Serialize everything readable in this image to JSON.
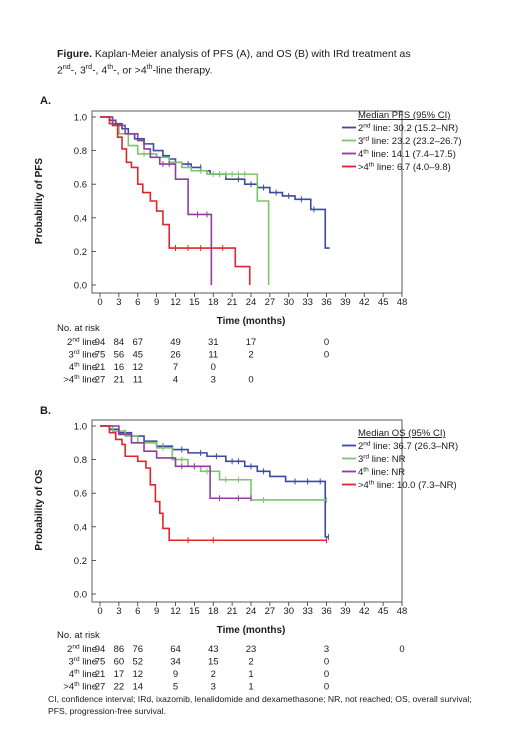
{
  "caption": {
    "figure_word": "Figure.",
    "before_2": " Kaplan-Meier analysis of PFS (A), and OS (B) with IRd treatment as",
    "n2": "2",
    "sup2": "nd",
    "sep_a": "-, ",
    "n3": "3",
    "sup3": "rd",
    "sep_b": "-, ",
    "n4": "4",
    "sup4": "th",
    "sep_c": "-, or >",
    "n5": "4",
    "sup5": "th",
    "tail": "-line  therapy."
  },
  "footnote": "CI, confidence interval; IRd, ixazomib, lenalidomide and dexamethasone; NR, not reached; OS, overall survival; PFS, progression-free survival.",
  "at_risk_title": "No. at risk",
  "colors": {
    "l2": "#3b4a9e",
    "l3": "#7cc46e",
    "l4": "#8e3f9c",
    "l5": "#e0262b",
    "axis": "#333333"
  },
  "chart_data": [
    {
      "panel": "A.",
      "type": "line",
      "ylabel": "Probability of PFS",
      "xlabel": "Time (months)",
      "xlim": [
        0,
        48
      ],
      "ylim": [
        0,
        1
      ],
      "xticks": [
        0,
        3,
        6,
        9,
        12,
        15,
        18,
        21,
        24,
        27,
        30,
        33,
        36,
        39,
        42,
        45,
        48
      ],
      "yticks": [
        "0.0",
        "0.2",
        "0.4",
        "0.6",
        "0.8",
        "1.0"
      ],
      "legend_title": "Median PFS (95% CI)",
      "series": [
        {
          "key": "l2",
          "name": "2nd line: 30.2 (15.2–NR)",
          "sup": "nd",
          "rest": " line: 30.2 (15.2–NR)",
          "num": "2",
          "steps": [
            [
              0,
              1
            ],
            [
              1.5,
              0.98
            ],
            [
              2.5,
              0.96
            ],
            [
              3.5,
              0.93
            ],
            [
              4.5,
              0.9
            ],
            [
              5.5,
              0.87
            ],
            [
              7,
              0.84
            ],
            [
              8.5,
              0.8
            ],
            [
              10,
              0.77
            ],
            [
              11,
              0.75
            ],
            [
              12,
              0.73
            ],
            [
              13,
              0.72
            ],
            [
              14.5,
              0.7
            ],
            [
              16,
              0.68
            ],
            [
              17.5,
              0.66
            ],
            [
              20,
              0.63
            ],
            [
              23,
              0.6
            ],
            [
              25,
              0.58
            ],
            [
              27,
              0.55
            ],
            [
              29,
              0.53
            ],
            [
              31,
              0.51
            ],
            [
              33.5,
              0.45
            ],
            [
              35.8,
              0.22
            ]
          ],
          "end": 36.5,
          "censor": [
            [
              14,
              0.72
            ],
            [
              16,
              0.7
            ],
            [
              19,
              0.66
            ],
            [
              22,
              0.63
            ],
            [
              24,
              0.6
            ],
            [
              26,
              0.58
            ],
            [
              28,
              0.55
            ],
            [
              30,
              0.53
            ],
            [
              32,
              0.51
            ],
            [
              34,
              0.45
            ]
          ]
        },
        {
          "key": "l3",
          "name": "3rd line: 23.2 (23.2–26.7)",
          "sup": "rd",
          "rest": " line: 23.2 (23.2–26.7)",
          "num": "3",
          "steps": [
            [
              0,
              1
            ],
            [
              2,
              0.95
            ],
            [
              3,
              0.9
            ],
            [
              4.5,
              0.83
            ],
            [
              6,
              0.78
            ],
            [
              9,
              0.76
            ],
            [
              11,
              0.73
            ],
            [
              13,
              0.7
            ],
            [
              14.5,
              0.68
            ],
            [
              17,
              0.66
            ],
            [
              25,
              0.5
            ],
            [
              26.8,
              0
            ]
          ],
          "end": 26.8,
          "censor": [
            [
              7,
              0.78
            ],
            [
              8,
              0.78
            ],
            [
              16,
              0.68
            ],
            [
              18,
              0.66
            ],
            [
              19,
              0.66
            ],
            [
              20,
              0.66
            ],
            [
              21,
              0.66
            ],
            [
              22,
              0.66
            ],
            [
              23,
              0.66
            ]
          ]
        },
        {
          "key": "l4",
          "name": "4th line: 14.1 (7.4–17.5)",
          "sup": "th",
          "rest": " line: 14.1 (7.4–17.5)",
          "num": "4",
          "steps": [
            [
              0,
              1
            ],
            [
              2,
              0.95
            ],
            [
              4,
              0.9
            ],
            [
              6,
              0.86
            ],
            [
              7,
              0.81
            ],
            [
              8,
              0.76
            ],
            [
              9.5,
              0.72
            ],
            [
              12,
              0.63
            ],
            [
              14,
              0.42
            ],
            [
              17.7,
              0
            ]
          ],
          "end": 17.7,
          "censor": [
            [
              10,
              0.72
            ],
            [
              11,
              0.72
            ],
            [
              15.5,
              0.42
            ],
            [
              17,
              0.42
            ]
          ]
        },
        {
          "key": "l5",
          "name": ">4th line: 6.7 (4.0–9.8)",
          "sup": "th",
          "rest": " line: 6.7 (4.0–9.8)",
          "num": ">4",
          "steps": [
            [
              0,
              1
            ],
            [
              1.5,
              0.96
            ],
            [
              2.8,
              0.88
            ],
            [
              3.5,
              0.81
            ],
            [
              4.2,
              0.73
            ],
            [
              5,
              0.7
            ],
            [
              6,
              0.6
            ],
            [
              6.8,
              0.55
            ],
            [
              8,
              0.5
            ],
            [
              9,
              0.44
            ],
            [
              10,
              0.36
            ],
            [
              11,
              0.22
            ],
            [
              21.5,
              0.11
            ],
            [
              23.8,
              0
            ]
          ],
          "end": 23.8,
          "censor": [
            [
              12,
              0.22
            ],
            [
              14,
              0.22
            ],
            [
              16,
              0.22
            ],
            [
              19.5,
              0.22
            ]
          ]
        }
      ],
      "at_risk": [
        {
          "num": "2",
          "sup": "nd",
          "label": " line",
          "values": [
            [
              "0",
              "94"
            ],
            [
              "3",
              "84"
            ],
            [
              "6",
              "67"
            ],
            [
              "12",
              "49"
            ],
            [
              "18",
              "31"
            ],
            [
              "24",
              "17"
            ],
            [
              "36",
              "0"
            ]
          ]
        },
        {
          "num": "3",
          "sup": "rd",
          "label": " line",
          "values": [
            [
              "0",
              "75"
            ],
            [
              "3",
              "56"
            ],
            [
              "6",
              "45"
            ],
            [
              "12",
              "26"
            ],
            [
              "18",
              "11"
            ],
            [
              "24",
              "2"
            ],
            [
              "36",
              "0"
            ]
          ]
        },
        {
          "num": "4",
          "sup": "th",
          "label": " line",
          "values": [
            [
              "0",
              "21"
            ],
            [
              "3",
              "16"
            ],
            [
              "6",
              "12"
            ],
            [
              "12",
              "7"
            ],
            [
              "18",
              "0"
            ]
          ]
        },
        {
          "num": ">4",
          "sup": "th",
          "label": " line",
          "values": [
            [
              "0",
              "27"
            ],
            [
              "3",
              "21"
            ],
            [
              "6",
              "11"
            ],
            [
              "12",
              "4"
            ],
            [
              "18",
              "3"
            ],
            [
              "24",
              "0"
            ]
          ]
        }
      ]
    },
    {
      "panel": "B.",
      "type": "line",
      "ylabel": "Probability of OS",
      "xlabel": "Time (months)",
      "xlim": [
        0,
        48
      ],
      "ylim": [
        0,
        1
      ],
      "xticks": [
        0,
        3,
        6,
        9,
        12,
        15,
        18,
        21,
        24,
        27,
        30,
        33,
        36,
        39,
        42,
        45,
        48
      ],
      "yticks": [
        "0.0",
        "0.2",
        "0.4",
        "0.6",
        "0.8",
        "1.0"
      ],
      "legend_title": "Median OS (95% CI)",
      "series": [
        {
          "key": "l2",
          "name": "2nd line: 36.7 (26.3–NR)",
          "sup": "nd",
          "rest": " line: 36.7 (26.3–NR)",
          "num": "2",
          "steps": [
            [
              0,
              1
            ],
            [
              1.5,
              0.98
            ],
            [
              3,
              0.96
            ],
            [
              5,
              0.94
            ],
            [
              7,
              0.91
            ],
            [
              9,
              0.88
            ],
            [
              11.5,
              0.86
            ],
            [
              14,
              0.84
            ],
            [
              17,
              0.82
            ],
            [
              20,
              0.79
            ],
            [
              23,
              0.76
            ],
            [
              25,
              0.73
            ],
            [
              27,
              0.7
            ],
            [
              29.5,
              0.67
            ],
            [
              35.8,
              0.34
            ]
          ],
          "end": 36.4,
          "censor": [
            [
              4,
              0.96
            ],
            [
              10,
              0.88
            ],
            [
              13,
              0.86
            ],
            [
              16,
              0.84
            ],
            [
              18.5,
              0.82
            ],
            [
              21,
              0.79
            ],
            [
              22,
              0.79
            ],
            [
              24,
              0.76
            ],
            [
              26,
              0.73
            ],
            [
              31,
              0.67
            ],
            [
              33,
              0.67
            ],
            [
              35,
              0.67
            ],
            [
              36.3,
              0.34
            ]
          ]
        },
        {
          "key": "l3",
          "name": "3rd line: NR",
          "sup": "rd",
          "rest": " line: NR",
          "num": "3",
          "steps": [
            [
              0,
              1
            ],
            [
              2,
              0.97
            ],
            [
              4,
              0.94
            ],
            [
              6,
              0.9
            ],
            [
              9,
              0.87
            ],
            [
              11.5,
              0.8
            ],
            [
              14,
              0.76
            ],
            [
              16,
              0.73
            ],
            [
              19,
              0.68
            ],
            [
              24,
              0.56
            ]
          ],
          "end": 36,
          "censor": [
            [
              10,
              0.87
            ],
            [
              13,
              0.8
            ],
            [
              15,
              0.76
            ],
            [
              17,
              0.73
            ],
            [
              20,
              0.68
            ],
            [
              22,
              0.68
            ],
            [
              26,
              0.56
            ],
            [
              36,
              0.56
            ]
          ]
        },
        {
          "key": "l4",
          "name": "4th line: NR",
          "sup": "th",
          "rest": " line: NR",
          "num": "4",
          "steps": [
            [
              0,
              1
            ],
            [
              3,
              0.95
            ],
            [
              5,
              0.9
            ],
            [
              7,
              0.85
            ],
            [
              9,
              0.81
            ],
            [
              12,
              0.76
            ],
            [
              17.5,
              0.57
            ]
          ],
          "end": 24,
          "censor": [
            [
              13,
              0.76
            ],
            [
              15,
              0.76
            ],
            [
              19,
              0.57
            ],
            [
              22,
              0.57
            ],
            [
              24,
              0.57
            ]
          ]
        },
        {
          "key": "l5",
          "name": ">4th line: 10.0 (7.3–NR)",
          "sup": "th",
          "rest": " line: 10.0 (7.3–NR)",
          "num": ">4",
          "steps": [
            [
              0,
              1
            ],
            [
              1.5,
              0.96
            ],
            [
              2.5,
              0.92
            ],
            [
              3.5,
              0.89
            ],
            [
              4,
              0.82
            ],
            [
              6,
              0.79
            ],
            [
              7.3,
              0.75
            ],
            [
              8,
              0.65
            ],
            [
              8.8,
              0.55
            ],
            [
              9.5,
              0.48
            ],
            [
              10,
              0.39
            ],
            [
              11,
              0.32
            ]
          ],
          "end": 36,
          "censor": [
            [
              14,
              0.32
            ],
            [
              18,
              0.32
            ],
            [
              36,
              0.32
            ]
          ]
        }
      ],
      "at_risk": [
        {
          "num": "2",
          "sup": "nd",
          "label": " line",
          "values": [
            [
              "0",
              "94"
            ],
            [
              "3",
              "86"
            ],
            [
              "6",
              "76"
            ],
            [
              "12",
              "64"
            ],
            [
              "18",
              "43"
            ],
            [
              "24",
              "23"
            ],
            [
              "36",
              "3"
            ],
            [
              "48",
              "0"
            ]
          ]
        },
        {
          "num": "3",
          "sup": "rd",
          "label": " line",
          "values": [
            [
              "0",
              "75"
            ],
            [
              "3",
              "60"
            ],
            [
              "6",
              "52"
            ],
            [
              "12",
              "34"
            ],
            [
              "18",
              "15"
            ],
            [
              "24",
              "2"
            ],
            [
              "36",
              "0"
            ]
          ]
        },
        {
          "num": "4",
          "sup": "th",
          "label": " line",
          "values": [
            [
              "0",
              "21"
            ],
            [
              "3",
              "17"
            ],
            [
              "6",
              "12"
            ],
            [
              "12",
              "9"
            ],
            [
              "18",
              "2"
            ],
            [
              "24",
              "1"
            ],
            [
              "36",
              "0"
            ]
          ]
        },
        {
          "num": ">4",
          "sup": "th",
          "label": " line",
          "values": [
            [
              "0",
              "27"
            ],
            [
              "3",
              "22"
            ],
            [
              "6",
              "14"
            ],
            [
              "12",
              "5"
            ],
            [
              "18",
              "3"
            ],
            [
              "24",
              "1"
            ],
            [
              "36",
              "0"
            ]
          ]
        }
      ]
    }
  ]
}
